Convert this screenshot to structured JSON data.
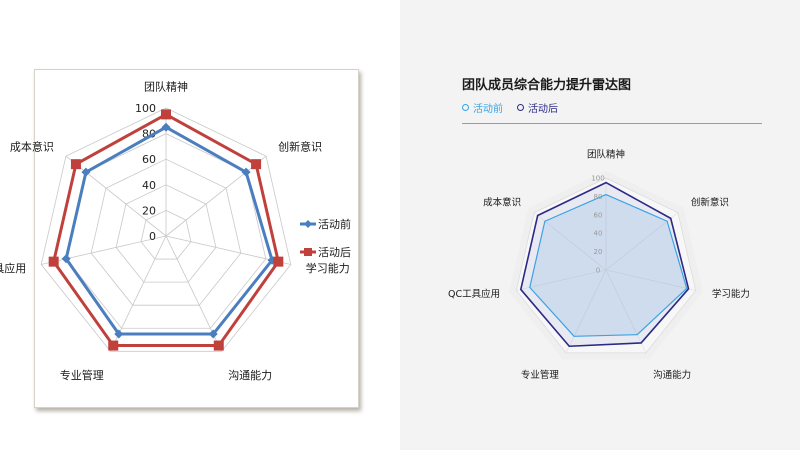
{
  "chart_data": [
    {
      "type": "radar",
      "categories": [
        "团队精神",
        "创新意识",
        "学习能力",
        "沟通能力",
        "专业管理",
        "QC工具应用",
        "成本意识"
      ],
      "series": [
        {
          "name": "活动前",
          "values": [
            85,
            80,
            85,
            85,
            85,
            80,
            80
          ],
          "color": "#4a7ebf"
        },
        {
          "name": "活动后",
          "values": [
            95,
            90,
            90,
            95,
            95,
            90,
            90
          ],
          "color": "#c0403b"
        }
      ],
      "rlim": [
        0,
        100
      ],
      "r_ticks": [
        "0",
        "20",
        "40",
        "60",
        "80",
        "100"
      ],
      "grid": true,
      "legend_position": "right"
    },
    {
      "type": "radar",
      "title": "团队成员综合能力提升雷达图",
      "categories": [
        "团队精神",
        "创新意识",
        "学习能力",
        "沟通能力",
        "专业管理",
        "QC工具应用",
        "成本意识"
      ],
      "series": [
        {
          "name": "活动前",
          "values": [
            82,
            85,
            90,
            78,
            80,
            85,
            85
          ],
          "color": "#3aa3e3"
        },
        {
          "name": "活动后",
          "values": [
            95,
            90,
            92,
            88,
            92,
            95,
            95
          ],
          "color": "#2b2a85"
        }
      ],
      "rlim": [
        0,
        100
      ],
      "r_ticks": [
        "0",
        "20",
        "40",
        "60",
        "80",
        "100"
      ],
      "grid": true,
      "legend_position": "top-left"
    }
  ]
}
